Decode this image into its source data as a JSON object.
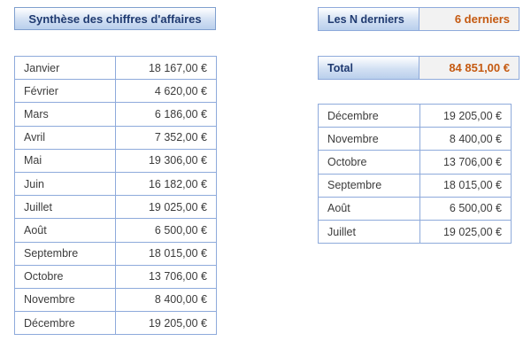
{
  "title": "Synthèse des chiffres d'affaires",
  "n_selector": {
    "label": "Les N derniers",
    "value": "6 derniers"
  },
  "total": {
    "label": "Total",
    "value": "84 851,00 €"
  },
  "months": [
    {
      "month": "Janvier",
      "amount": "18 167,00 €"
    },
    {
      "month": "Février",
      "amount": "4 620,00 €"
    },
    {
      "month": "Mars",
      "amount": "6 186,00 €"
    },
    {
      "month": "Avril",
      "amount": "7 352,00 €"
    },
    {
      "month": "Mai",
      "amount": "19 306,00 €"
    },
    {
      "month": "Juin",
      "amount": "16 182,00 €"
    },
    {
      "month": "Juillet",
      "amount": "19 025,00 €"
    },
    {
      "month": "Août",
      "amount": "6 500,00 €"
    },
    {
      "month": "Septembre",
      "amount": "18 015,00 €"
    },
    {
      "month": "Octobre",
      "amount": "13 706,00 €"
    },
    {
      "month": "Novembre",
      "amount": "8 400,00 €"
    },
    {
      "month": "Décembre",
      "amount": "19 205,00 €"
    }
  ],
  "last_months": [
    {
      "month": "Décembre",
      "amount": "19 205,00 €"
    },
    {
      "month": "Novembre",
      "amount": "8 400,00 €"
    },
    {
      "month": "Octobre",
      "amount": "13 706,00 €"
    },
    {
      "month": "Septembre",
      "amount": "18 015,00 €"
    },
    {
      "month": "Août",
      "amount": "6 500,00 €"
    },
    {
      "month": "Juillet",
      "amount": "19 025,00 €"
    }
  ]
}
